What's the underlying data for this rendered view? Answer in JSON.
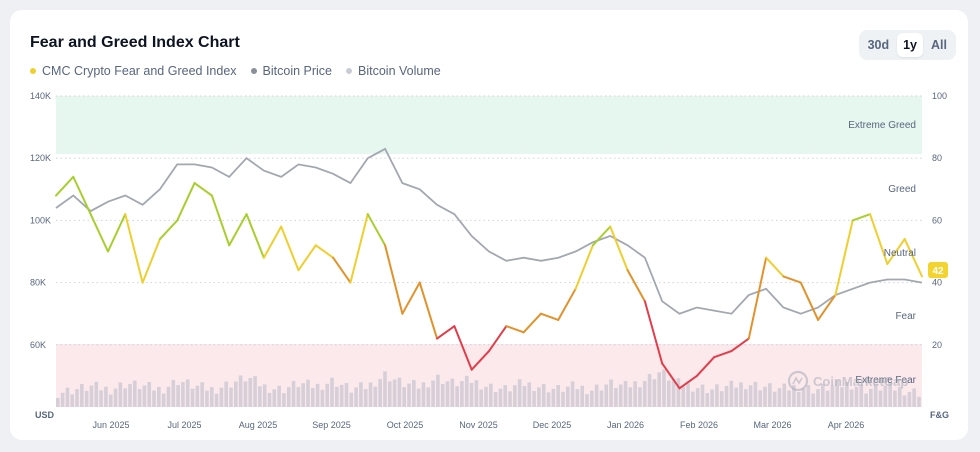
{
  "title": "Fear and Greed Index Chart",
  "legend": [
    {
      "label": "CMC Crypto Fear and Greed Index",
      "color": "#eecf2e"
    },
    {
      "label": "Bitcoin Price",
      "color": "#8a8f98"
    },
    {
      "label": "Bitcoin Volume",
      "color": "#c9ccd3"
    }
  ],
  "range_buttons": {
    "b30d": "30d",
    "b1y": "1y",
    "ball": "All",
    "active": "1y"
  },
  "watermark": "CoinMarketCap",
  "chart_data": {
    "type": "line",
    "x_labels": [
      "Jun 2025",
      "Jul 2025",
      "Aug 2025",
      "Sep 2025",
      "Oct 2025",
      "Nov 2025",
      "Dec 2025",
      "Jan 2026",
      "Feb 2026",
      "Mar 2026",
      "Apr 2026"
    ],
    "left_axis": {
      "unit": "USD",
      "ticks": [
        "140K",
        "120K",
        "100K",
        "80K",
        "60K"
      ],
      "range": [
        40000,
        140000
      ]
    },
    "right_axis": {
      "unit": "F&G",
      "ticks": [
        "100",
        "80",
        "60",
        "40",
        "20"
      ],
      "range": [
        0,
        100
      ]
    },
    "zones": {
      "extreme_greed": "Extreme Greed",
      "greed": "Greed",
      "neutral": "Neutral",
      "fear": "Fear",
      "extreme_fear": "Extreme Fear"
    },
    "current_value": "42",
    "series": [
      {
        "name": "CMC Crypto Fear and Greed Index",
        "axis": "right",
        "x": [
          0,
          0.02,
          0.04,
          0.06,
          0.08,
          0.1,
          0.12,
          0.14,
          0.16,
          0.18,
          0.2,
          0.22,
          0.24,
          0.26,
          0.28,
          0.3,
          0.32,
          0.34,
          0.36,
          0.38,
          0.4,
          0.42,
          0.44,
          0.46,
          0.48,
          0.5,
          0.52,
          0.54,
          0.56,
          0.58,
          0.6,
          0.62,
          0.64,
          0.66,
          0.68,
          0.7,
          0.72,
          0.74,
          0.76,
          0.78,
          0.8,
          0.82,
          0.84,
          0.86,
          0.88,
          0.9,
          0.92,
          0.94,
          0.96,
          0.98,
          1
        ],
        "values": [
          68,
          74,
          62,
          50,
          62,
          40,
          54,
          60,
          72,
          68,
          52,
          62,
          48,
          58,
          44,
          52,
          48,
          40,
          62,
          52,
          30,
          40,
          22,
          26,
          12,
          18,
          26,
          24,
          30,
          28,
          38,
          52,
          58,
          44,
          34,
          14,
          6,
          10,
          16,
          18,
          22,
          48,
          42,
          40,
          28,
          36,
          60,
          62,
          46,
          54,
          42
        ]
      },
      {
        "name": "Bitcoin Price",
        "axis": "left",
        "x": [
          0,
          0.02,
          0.04,
          0.06,
          0.08,
          0.1,
          0.12,
          0.14,
          0.16,
          0.18,
          0.2,
          0.22,
          0.24,
          0.26,
          0.28,
          0.3,
          0.32,
          0.34,
          0.36,
          0.38,
          0.4,
          0.42,
          0.44,
          0.46,
          0.48,
          0.5,
          0.52,
          0.54,
          0.56,
          0.58,
          0.6,
          0.62,
          0.64,
          0.66,
          0.68,
          0.7,
          0.72,
          0.74,
          0.76,
          0.78,
          0.8,
          0.82,
          0.84,
          0.86,
          0.88,
          0.9,
          0.92,
          0.94,
          0.96,
          0.98,
          1
        ],
        "values": [
          104000,
          108000,
          103000,
          106000,
          108000,
          105000,
          110000,
          118000,
          118000,
          117000,
          114000,
          120000,
          116000,
          114000,
          118000,
          117000,
          115000,
          112000,
          120000,
          123000,
          112000,
          110000,
          105000,
          102000,
          95000,
          90000,
          87000,
          88000,
          87000,
          88000,
          90000,
          93000,
          95000,
          92000,
          88000,
          74000,
          70000,
          72000,
          71000,
          70000,
          76000,
          78000,
          72000,
          70000,
          72000,
          76000,
          78000,
          80000,
          81000,
          81000,
          80000
        ]
      },
      {
        "name": "Bitcoin Volume",
        "axis": "none",
        "values": [
          3,
          4,
          5,
          4,
          6,
          5,
          4,
          7,
          5,
          4,
          6,
          8,
          5,
          4,
          6,
          5,
          7,
          4,
          5,
          9,
          6,
          5,
          8,
          6,
          7,
          5,
          4,
          6,
          5,
          4,
          5,
          4,
          6,
          5,
          7,
          10,
          6,
          5,
          4,
          5,
          6,
          5,
          4,
          5,
          4,
          5,
          6,
          4,
          5,
          4,
          3
        ]
      }
    ]
  }
}
